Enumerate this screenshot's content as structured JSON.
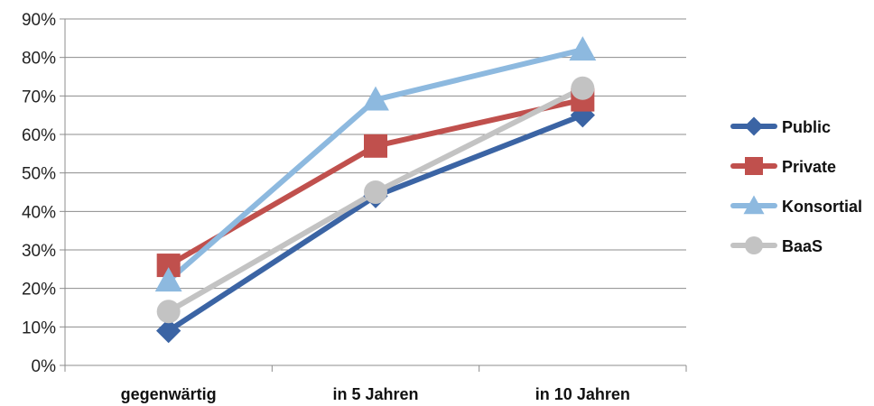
{
  "chart_data": {
    "type": "line",
    "categories": [
      "gegenwärtig",
      "in 5 Jahren",
      "in 10 Jahren"
    ],
    "ylim": [
      0,
      0.9
    ],
    "yticks": [
      0,
      0.1,
      0.2,
      0.3,
      0.4,
      0.5,
      0.6,
      0.7,
      0.8,
      0.9
    ],
    "ytick_labels": [
      "0%",
      "10%",
      "20%",
      "30%",
      "40%",
      "50%",
      "60%",
      "70%",
      "80%",
      "90%"
    ],
    "grid": true,
    "legend_position": "right",
    "series": [
      {
        "name": "Public",
        "values": [
          0.09,
          0.44,
          0.65
        ],
        "color": "#3b64a4",
        "marker": "diamond"
      },
      {
        "name": "Private",
        "values": [
          0.26,
          0.57,
          0.69
        ],
        "color": "#c0504d",
        "marker": "square"
      },
      {
        "name": "Konsortial",
        "values": [
          0.22,
          0.69,
          0.82
        ],
        "color": "#8db9df",
        "marker": "triangle"
      },
      {
        "name": "BaaS",
        "values": [
          0.14,
          0.45,
          0.72
        ],
        "color": "#c3c3c3",
        "marker": "circle"
      }
    ]
  }
}
